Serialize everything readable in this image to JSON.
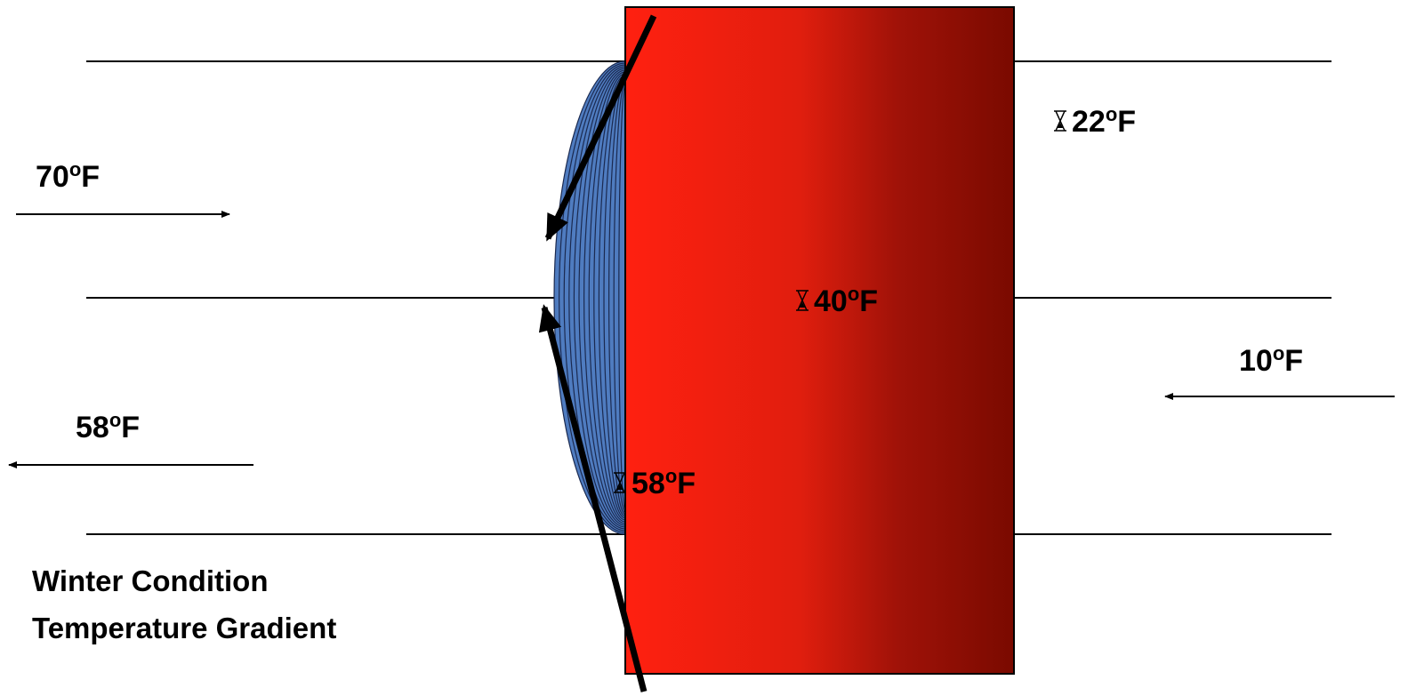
{
  "labels": [
    {
      "number": "70",
      "sup": "o",
      "unit": "F"
    },
    {
      "number": "58",
      "sup": "o",
      "unit": "F"
    },
    {
      "number": "10",
      "sup": "o",
      "unit": "F"
    },
    {
      "number": "22",
      "sup": "o",
      "unit": "F"
    },
    {
      "number": "40",
      "sup": "o",
      "unit": "F"
    },
    {
      "number": "58",
      "sup": "o",
      "unit": "F"
    }
  ],
  "caption": [
    "Winter Condition",
    "Temperature Gradient"
  ]
}
